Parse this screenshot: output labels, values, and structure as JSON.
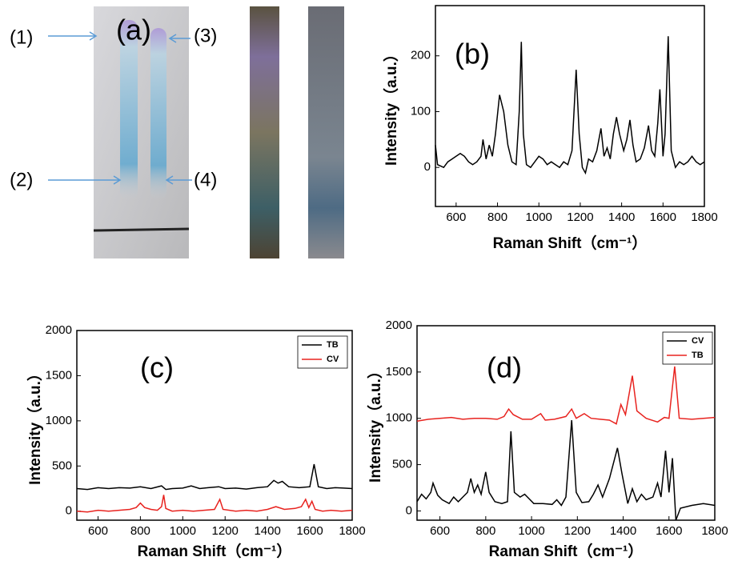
{
  "photo": {
    "label": "(a)",
    "markers": [
      "(1)",
      "(2)",
      "(3)",
      "(4)"
    ]
  },
  "chart_data": [
    {
      "type": "line",
      "panel_label": "(b)",
      "xlabel": "Raman Shift（cm⁻¹）",
      "ylabel": "Intensity（a.u.）",
      "xlim": [
        500,
        1800
      ],
      "ylim": [
        -70,
        290
      ],
      "xticks": [
        600,
        800,
        1000,
        1200,
        1400,
        1600,
        1800
      ],
      "yticks": [
        0,
        100,
        200
      ],
      "series": [
        {
          "color": "#000000",
          "x": [
            500,
            510,
            540,
            560,
            580,
            600,
            620,
            640,
            660,
            680,
            700,
            720,
            730,
            745,
            760,
            775,
            790,
            810,
            830,
            850,
            870,
            890,
            905,
            915,
            925,
            940,
            960,
            980,
            1000,
            1020,
            1040,
            1060,
            1080,
            1100,
            1120,
            1140,
            1160,
            1180,
            1195,
            1210,
            1225,
            1240,
            1260,
            1280,
            1300,
            1315,
            1330,
            1345,
            1360,
            1375,
            1390,
            1410,
            1425,
            1440,
            1455,
            1470,
            1490,
            1510,
            1530,
            1545,
            1560,
            1575,
            1585,
            1600,
            1610,
            1625,
            1640,
            1660,
            1680,
            1700,
            1720,
            1740,
            1760,
            1780,
            1800
          ],
          "values": [
            40,
            5,
            0,
            10,
            15,
            20,
            25,
            20,
            10,
            5,
            10,
            20,
            50,
            15,
            40,
            20,
            60,
            130,
            100,
            40,
            10,
            5,
            100,
            225,
            60,
            5,
            0,
            10,
            20,
            15,
            5,
            10,
            5,
            0,
            10,
            5,
            30,
            175,
            60,
            0,
            -10,
            15,
            10,
            30,
            70,
            20,
            35,
            15,
            60,
            90,
            60,
            30,
            50,
            85,
            40,
            10,
            15,
            35,
            75,
            30,
            20,
            80,
            140,
            20,
            60,
            235,
            30,
            0,
            10,
            5,
            10,
            20,
            10,
            5,
            10
          ]
        }
      ]
    },
    {
      "type": "line",
      "panel_label": "(c)",
      "xlabel": "Raman Shift（cm⁻¹）",
      "ylabel": "Intensity（a.u.）",
      "xlim": [
        500,
        1800
      ],
      "ylim": [
        -100,
        2000
      ],
      "xticks": [
        600,
        800,
        1000,
        1200,
        1400,
        1600,
        1800
      ],
      "yticks": [
        0,
        500,
        1000,
        1500,
        2000
      ],
      "series": [
        {
          "name": "TB",
          "color": "#000000",
          "x": [
            500,
            550,
            600,
            650,
            700,
            750,
            800,
            850,
            900,
            920,
            950,
            1000,
            1040,
            1080,
            1120,
            1170,
            1200,
            1250,
            1300,
            1350,
            1400,
            1430,
            1450,
            1470,
            1500,
            1550,
            1600,
            1620,
            1640,
            1680,
            1720,
            1760,
            1800
          ],
          "values": [
            250,
            240,
            260,
            250,
            260,
            255,
            270,
            250,
            280,
            240,
            250,
            255,
            280,
            250,
            260,
            270,
            250,
            255,
            245,
            260,
            270,
            340,
            310,
            330,
            270,
            260,
            270,
            520,
            270,
            250,
            260,
            255,
            250
          ]
        },
        {
          "name": "CV",
          "color": "#e8231f",
          "x": [
            500,
            550,
            600,
            650,
            700,
            750,
            780,
            800,
            820,
            850,
            880,
            900,
            910,
            920,
            950,
            1000,
            1050,
            1100,
            1150,
            1175,
            1190,
            1250,
            1300,
            1350,
            1400,
            1440,
            1480,
            1530,
            1560,
            1580,
            1595,
            1610,
            1625,
            1660,
            1700,
            1750,
            1800
          ],
          "values": [
            0,
            -10,
            10,
            0,
            10,
            20,
            40,
            90,
            40,
            20,
            10,
            50,
            180,
            30,
            0,
            10,
            0,
            10,
            20,
            130,
            20,
            0,
            10,
            0,
            20,
            50,
            20,
            30,
            50,
            130,
            40,
            110,
            20,
            0,
            10,
            0,
            10
          ]
        }
      ]
    },
    {
      "type": "line",
      "panel_label": "(d)",
      "xlabel": "Raman Shift（cm⁻¹）",
      "ylabel": "Intensity（a.u.）",
      "xlim": [
        500,
        1800
      ],
      "ylim": [
        -100,
        2000
      ],
      "xticks": [
        600,
        800,
        1000,
        1200,
        1400,
        1600,
        1800
      ],
      "yticks": [
        0,
        500,
        1000,
        1500,
        2000
      ],
      "series": [
        {
          "name": "CV",
          "color": "#000000",
          "x": [
            500,
            520,
            540,
            560,
            570,
            590,
            610,
            640,
            660,
            680,
            700,
            720,
            735,
            750,
            765,
            780,
            800,
            815,
            840,
            870,
            895,
            910,
            925,
            950,
            970,
            990,
            1010,
            1050,
            1090,
            1110,
            1130,
            1150,
            1175,
            1195,
            1220,
            1250,
            1270,
            1290,
            1310,
            1340,
            1375,
            1395,
            1420,
            1440,
            1460,
            1480,
            1500,
            1530,
            1550,
            1565,
            1585,
            1600,
            1615,
            1630,
            1650,
            1700,
            1750,
            1800
          ],
          "values": [
            100,
            180,
            130,
            200,
            300,
            170,
            120,
            80,
            150,
            100,
            150,
            200,
            350,
            200,
            280,
            180,
            420,
            200,
            100,
            80,
            100,
            860,
            200,
            150,
            180,
            130,
            80,
            80,
            70,
            120,
            60,
            150,
            980,
            200,
            90,
            100,
            180,
            280,
            150,
            350,
            680,
            400,
            80,
            240,
            100,
            180,
            120,
            150,
            300,
            150,
            650,
            200,
            570,
            -100,
            30,
            60,
            80,
            60
          ]
        },
        {
          "name": "TB",
          "color": "#e8231f",
          "x": [
            500,
            550,
            600,
            650,
            700,
            750,
            800,
            850,
            880,
            900,
            920,
            960,
            1000,
            1040,
            1060,
            1100,
            1150,
            1175,
            1195,
            1230,
            1260,
            1300,
            1340,
            1370,
            1390,
            1410,
            1440,
            1460,
            1500,
            1550,
            1580,
            1600,
            1625,
            1645,
            1700,
            1750,
            1800
          ],
          "values": [
            970,
            990,
            1000,
            1010,
            990,
            1000,
            1000,
            990,
            1020,
            1100,
            1040,
            990,
            990,
            1050,
            980,
            990,
            1020,
            1100,
            1000,
            1050,
            1000,
            990,
            980,
            940,
            1150,
            1040,
            1460,
            1080,
            1000,
            960,
            1010,
            1000,
            1560,
            1000,
            990,
            1000,
            1010
          ]
        }
      ]
    }
  ]
}
